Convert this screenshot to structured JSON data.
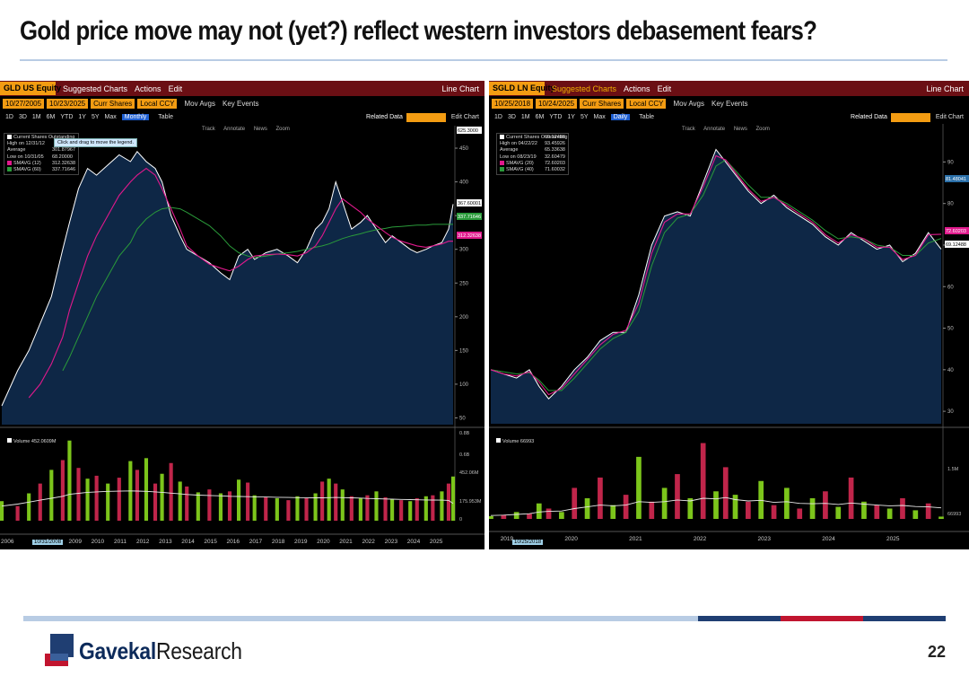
{
  "slide": {
    "title": "Gold price move may not (yet?) reflect western investors debasement fears?",
    "brand_bold": "Gavekal",
    "brand_regular": "Research",
    "page_number": "22"
  },
  "colors": {
    "terminal_bg": "#000000",
    "title_bar": "#6b0f14",
    "field_orange": "#f39c12",
    "price_fill": "#0e2746",
    "sma_short": "#e0198c",
    "sma_long": "#2a9b3a",
    "volume_green": "#7cc51b",
    "volume_red": "#c0254a",
    "rule_light": "#b8cce4",
    "rule_navy": "#1f3e72",
    "rule_red": "#c1152f"
  },
  "chart_data": [
    {
      "type": "line",
      "ticker": "GLD US Equity",
      "menu": [
        "Suggested Charts",
        "Actions",
        "Edit"
      ],
      "chart_kind": "Line Chart",
      "start_date": "10/27/2005",
      "end_date": "10/23/2025",
      "currency_field": "Curr Shares",
      "ccy_field": "Local CCY",
      "options": [
        "Mov Avgs",
        "Key Events"
      ],
      "ranges": [
        "1D",
        "3D",
        "1M",
        "6M",
        "YTD",
        "1Y",
        "5Y",
        "Max"
      ],
      "period": "Monthly",
      "table_label": "Table",
      "related_data": "Related Data",
      "edit_chart": "Edit Chart",
      "tools": [
        "Track",
        "Annotate",
        "News",
        "Zoom"
      ],
      "tooltip": "Click and drag to move the legend.",
      "legend": [
        {
          "label": "Current Shares Outstanding",
          "value": "367.60001"
        },
        {
          "label": "High on 12/31/12",
          "value": "436.50"
        },
        {
          "label": "Average",
          "value": "301.87967"
        },
        {
          "label": "Low on 10/31/05",
          "value": "68.20000"
        },
        {
          "label": "SMAVG (12)",
          "value": "312.32638"
        },
        {
          "label": "SMAVG (60)",
          "value": "337.71646"
        }
      ],
      "y_ticks": [
        50,
        100,
        150,
        200,
        250,
        300,
        350,
        400,
        450
      ],
      "ylim": [
        40,
        470
      ],
      "right_tags": [
        {
          "value": "367.60001",
          "color": "#ffffff"
        },
        {
          "value": "337.71646",
          "color": "#2a9b3a"
        },
        {
          "value": "312.32638",
          "color": "#e0198c"
        },
        {
          "value": "625.3000",
          "color": "#ffffff"
        }
      ],
      "x_labels": [
        "2006",
        "2008",
        "2009",
        "2010",
        "2011",
        "2012",
        "2013",
        "2014",
        "2015",
        "2016",
        "2017",
        "2018",
        "2019",
        "2020",
        "2021",
        "2022",
        "2023",
        "2024",
        "2025"
      ],
      "x_axis_selected": "10/31/2008",
      "x_years": [
        2005.8,
        2006.5,
        2007.0,
        2007.5,
        2008.0,
        2008.5,
        2008.8,
        2009.2,
        2009.6,
        2010.0,
        2010.5,
        2011.0,
        2011.5,
        2011.8,
        2012.2,
        2012.6,
        2012.9,
        2013.3,
        2013.7,
        2014.0,
        2014.5,
        2015.0,
        2015.5,
        2015.9,
        2016.3,
        2016.7,
        2017.0,
        2017.5,
        2018.0,
        2018.5,
        2018.9,
        2019.3,
        2019.7,
        2020.0,
        2020.3,
        2020.6,
        2020.9,
        2021.3,
        2021.7,
        2022.0,
        2022.4,
        2022.8,
        2023.1,
        2023.5,
        2023.9,
        2024.2,
        2024.6,
        2024.9,
        2025.3,
        2025.6,
        2025.8
      ],
      "price": [
        68,
        120,
        150,
        190,
        230,
        300,
        340,
        390,
        420,
        410,
        425,
        440,
        430,
        445,
        430,
        420,
        400,
        350,
        320,
        300,
        290,
        280,
        265,
        255,
        290,
        300,
        285,
        295,
        300,
        290,
        280,
        300,
        330,
        340,
        360,
        400,
        370,
        330,
        340,
        350,
        330,
        310,
        320,
        310,
        300,
        295,
        300,
        305,
        310,
        330,
        367
      ],
      "sma_short": [
        null,
        null,
        80,
        100,
        130,
        170,
        210,
        250,
        290,
        320,
        350,
        380,
        400,
        410,
        420,
        410,
        390,
        360,
        330,
        305,
        290,
        278,
        272,
        268,
        275,
        285,
        290,
        292,
        293,
        292,
        290,
        295,
        305,
        320,
        340,
        360,
        375,
        365,
        355,
        345,
        335,
        325,
        318,
        312,
        308,
        305,
        303,
        305,
        308,
        312,
        312
      ],
      "sma_long": [
        null,
        null,
        null,
        null,
        null,
        120,
        140,
        170,
        200,
        230,
        260,
        290,
        310,
        330,
        345,
        355,
        360,
        362,
        360,
        355,
        345,
        335,
        320,
        305,
        295,
        290,
        288,
        290,
        293,
        295,
        297,
        300,
        303,
        305,
        308,
        312,
        316,
        320,
        323,
        326,
        329,
        331,
        333,
        334,
        335,
        336,
        336,
        337,
        337,
        337,
        337
      ],
      "volume_label": "Volume",
      "volume_value": "452.0609M",
      "volume_ticks": [
        "0.8B",
        "0.6B",
        "452.06M",
        "175.953M",
        "0"
      ],
      "volume_ylim": [
        0,
        900
      ],
      "volume": [
        200,
        150,
        280,
        380,
        520,
        620,
        820,
        540,
        430,
        460,
        380,
        440,
        610,
        520,
        640,
        380,
        480,
        590,
        400,
        350,
        290,
        320,
        280,
        300,
        420,
        390,
        260,
        240,
        230,
        210,
        250,
        230,
        280,
        400,
        430,
        380,
        320,
        250,
        230,
        260,
        300,
        240,
        220,
        210,
        200,
        230,
        250,
        260,
        300,
        380,
        452
      ],
      "volume_avg": [
        150,
        170,
        190,
        210,
        230,
        250,
        270,
        280,
        290,
        295,
        300,
        302,
        305,
        303,
        300,
        295,
        290,
        282,
        275,
        268,
        262,
        258,
        254,
        250,
        248,
        246,
        244,
        242,
        240,
        238,
        236,
        235,
        234,
        234,
        236,
        238,
        236,
        234,
        231,
        228,
        225,
        222,
        220,
        218,
        216,
        214,
        212,
        211,
        210,
        208,
        176
      ]
    },
    {
      "type": "line",
      "ticker": "SGLD LN Equity",
      "menu": [
        "Suggested Charts",
        "Actions",
        "Edit"
      ],
      "chart_kind": "Line Chart",
      "start_date": "10/25/2018",
      "end_date": "10/24/2025",
      "currency_field": "Curr Shares",
      "ccy_field": "Local CCY",
      "options": [
        "Mov Avgs",
        "Key Events"
      ],
      "ranges": [
        "1D",
        "3D",
        "1M",
        "6M",
        "YTD",
        "1Y",
        "5Y",
        "Max"
      ],
      "period": "Daily",
      "table_label": "Table",
      "related_data": "Related Data",
      "edit_chart": "Edit Chart",
      "tools": [
        "Track",
        "Annotate",
        "News",
        "Zoom"
      ],
      "legend": [
        {
          "label": "Current Shares Outstanding",
          "value": "69.12488"
        },
        {
          "label": "High on 04/22/22",
          "value": "93.45926"
        },
        {
          "label": "Average",
          "value": "65.33638"
        },
        {
          "label": "Low on 08/23/19",
          "value": "32.60479"
        },
        {
          "label": "SMAVG (20)",
          "value": "72.60203"
        },
        {
          "label": "SMAVG (40)",
          "value": "71.60032"
        }
      ],
      "y_ticks": [
        30,
        40,
        50,
        60,
        70,
        80,
        90
      ],
      "ylim": [
        27,
        97
      ],
      "right_tags": [
        {
          "value": "81.48041",
          "color": "#2a6fa8"
        },
        {
          "value": "72.60203",
          "color": "#e0198c"
        },
        {
          "value": "69.12488",
          "color": "#ffffff"
        }
      ],
      "x_labels": [
        "2019",
        "2020",
        "2021",
        "2022",
        "2023",
        "2024",
        "2025"
      ],
      "x_axis_selected": "10/25/2018",
      "x_years": [
        2018.8,
        2019.0,
        2019.2,
        2019.4,
        2019.55,
        2019.7,
        2019.9,
        2020.1,
        2020.3,
        2020.5,
        2020.7,
        2020.9,
        2021.1,
        2021.3,
        2021.5,
        2021.7,
        2021.9,
        2022.1,
        2022.3,
        2022.45,
        2022.6,
        2022.8,
        2023.0,
        2023.2,
        2023.4,
        2023.6,
        2023.8,
        2024.0,
        2024.2,
        2024.4,
        2024.6,
        2024.8,
        2025.0,
        2025.2,
        2025.4,
        2025.6,
        2025.8
      ],
      "price": [
        40,
        39,
        38,
        40,
        36,
        33,
        36,
        40,
        43,
        47,
        49,
        49,
        58,
        70,
        77,
        78,
        77,
        85,
        93,
        90,
        87,
        83,
        80,
        82,
        79,
        77,
        75,
        72,
        70,
        73,
        71,
        69,
        70,
        66,
        68,
        73,
        69
      ],
      "sma_short": [
        40,
        39,
        38.5,
        39.5,
        37,
        34,
        35.5,
        39,
        42.5,
        46,
        48.5,
        49.5,
        56,
        68,
        75.5,
        77.5,
        77.5,
        84,
        91.5,
        90.5,
        87.5,
        83.5,
        80.5,
        81.5,
        79.5,
        77.5,
        75.5,
        72.5,
        70.5,
        72.5,
        71.5,
        69.5,
        69.5,
        66.5,
        67.5,
        72.5,
        72.6
      ],
      "sma_long": [
        40,
        39.5,
        39,
        39.3,
        37.5,
        35,
        35,
        38,
        41.5,
        45,
        47.5,
        49,
        54,
        65,
        73,
        76.5,
        77.5,
        82,
        89,
        90.5,
        88,
        84.5,
        81.5,
        81.5,
        80,
        78,
        76,
        73.5,
        71.5,
        72,
        71.5,
        70,
        69.5,
        67.5,
        67.5,
        70.5,
        71.6
      ],
      "volume_label": "Volume",
      "volume_value": "66993",
      "volume_ticks": [
        "1.5M",
        "66993"
      ],
      "volume_ylim": [
        0,
        2500000
      ],
      "volume": [
        80000,
        120000,
        200000,
        150000,
        450000,
        300000,
        200000,
        900000,
        600000,
        1200000,
        400000,
        700000,
        1800000,
        500000,
        900000,
        1300000,
        600000,
        2200000,
        800000,
        1500000,
        700000,
        500000,
        1100000,
        400000,
        900000,
        300000,
        600000,
        800000,
        350000,
        1200000,
        500000,
        400000,
        300000,
        600000,
        250000,
        450000,
        66993
      ],
      "volume_avg": [
        100000,
        110000,
        130000,
        150000,
        200000,
        220000,
        230000,
        300000,
        350000,
        400000,
        380000,
        400000,
        500000,
        480000,
        500000,
        550000,
        520000,
        600000,
        580000,
        620000,
        560000,
        520000,
        540000,
        480000,
        500000,
        450000,
        440000,
        450000,
        420000,
        460000,
        430000,
        400000,
        380000,
        390000,
        360000,
        350000,
        320000
      ]
    }
  ]
}
